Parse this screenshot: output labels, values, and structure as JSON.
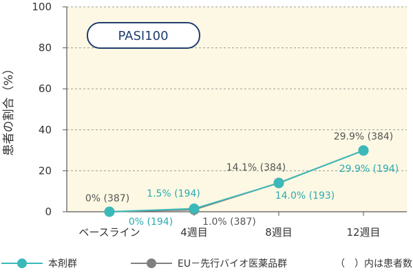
{
  "chart_data": {
    "type": "line",
    "ylabel": "患者の割合（%）",
    "badge": "PASI100",
    "categories": [
      "ベースライン",
      "4週目",
      "8週目",
      "12週目"
    ],
    "ylim": [
      0,
      100
    ],
    "yticks": [
      0,
      20,
      40,
      60,
      80,
      100
    ],
    "series": [
      {
        "name": "本剤群",
        "color": "#3bb9b9",
        "values": [
          0,
          1.5,
          14.0,
          29.9
        ],
        "labels": [
          "0% (194)",
          "1.5% (194)",
          "14.0% (193)",
          "29.9% (194)"
        ]
      },
      {
        "name": "EU－先行バイオ医薬品群",
        "color": "#808080",
        "values": [
          0,
          1.0,
          14.1,
          29.9
        ],
        "labels": [
          "0% (387)",
          "1.0% (387)",
          "14.1% (384)",
          "29.9% (384)"
        ]
      }
    ],
    "legend_note": "（　）内は患者数"
  }
}
